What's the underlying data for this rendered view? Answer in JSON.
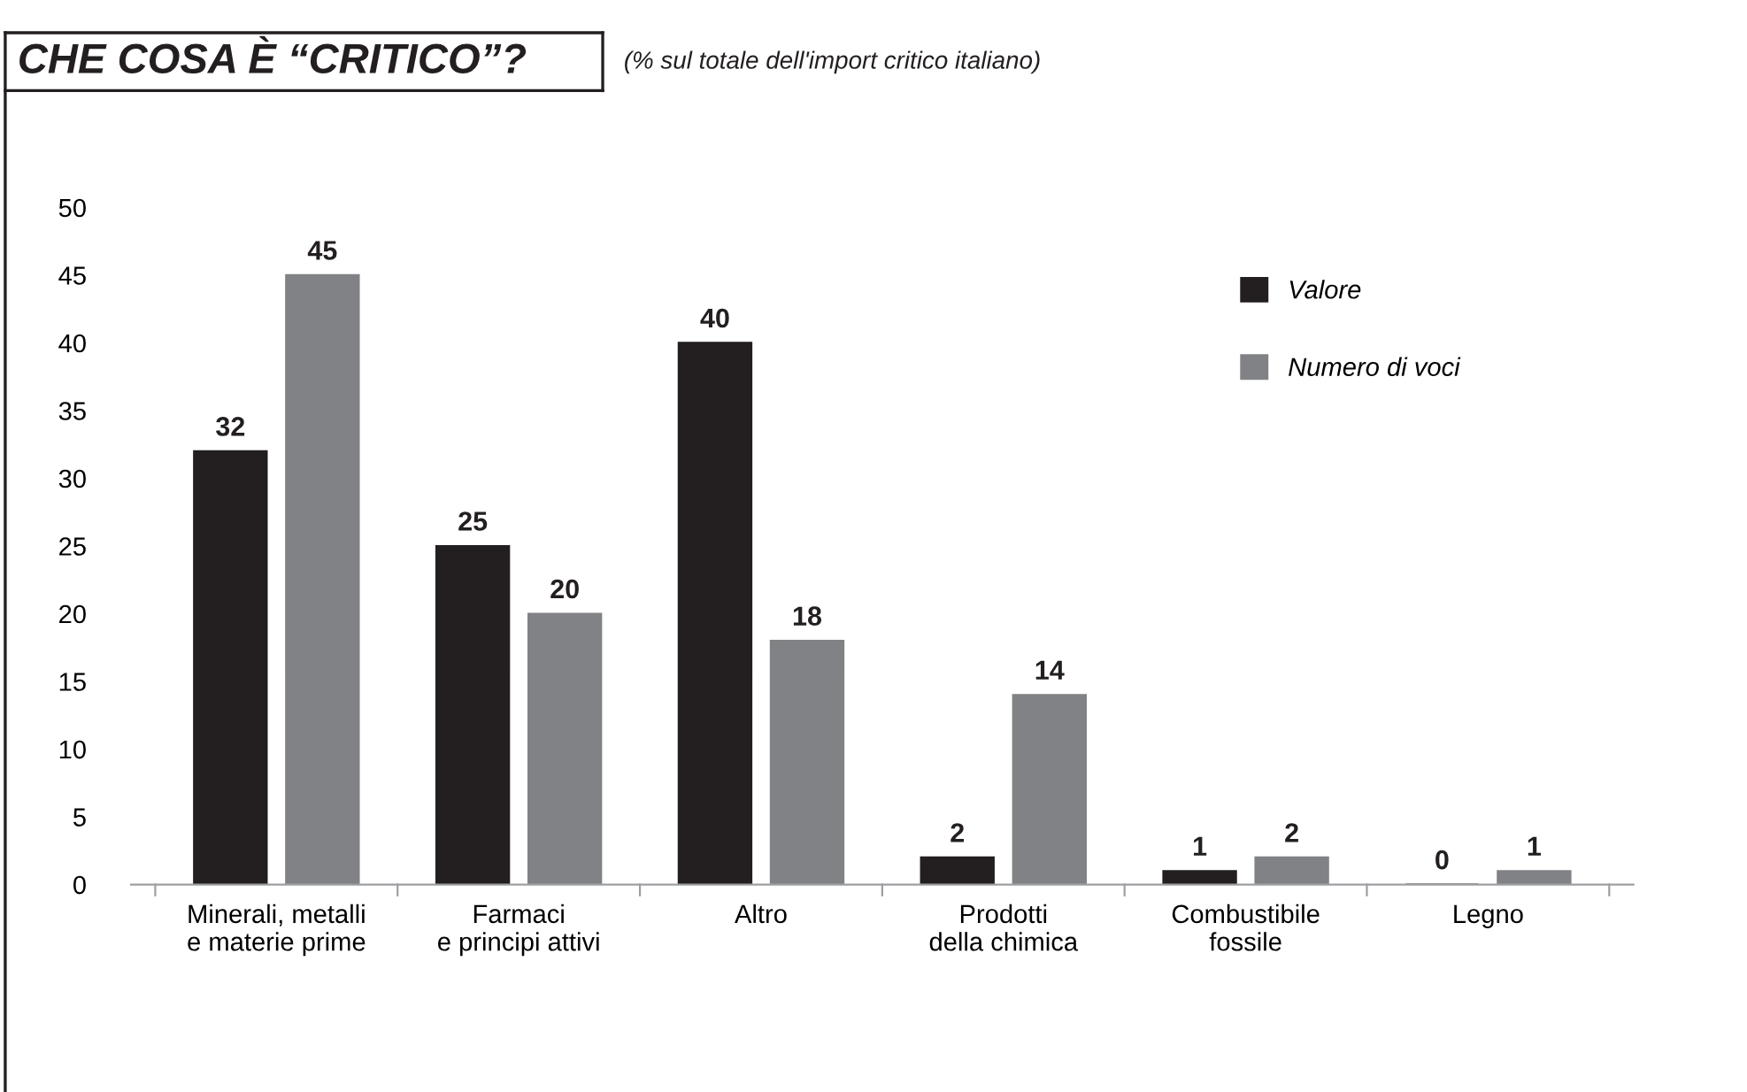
{
  "chart_data": {
    "type": "bar",
    "title": "CHE COSA È “CRITICO”?",
    "subtitle": "(% sul totale dell'import critico italiano)",
    "categories": [
      "Minerali, metalli\ne materie prime",
      "Farmaci\ne principi attivi",
      "Altro",
      "Prodotti\ndella chimica",
      "Combustibile\nfossile",
      "Legno"
    ],
    "series": [
      {
        "name": "Valore",
        "color": "#231f20",
        "values": [
          32,
          25,
          40,
          2,
          1,
          0
        ]
      },
      {
        "name": "Numero di voci",
        "color": "#808285",
        "values": [
          45,
          20,
          18,
          14,
          2,
          1
        ]
      }
    ],
    "ylim": [
      0,
      50
    ],
    "yticks": [
      0,
      5,
      10,
      15,
      20,
      25,
      30,
      35,
      40,
      45,
      50
    ],
    "grid": false,
    "legend": "top right",
    "data_labels": true
  }
}
